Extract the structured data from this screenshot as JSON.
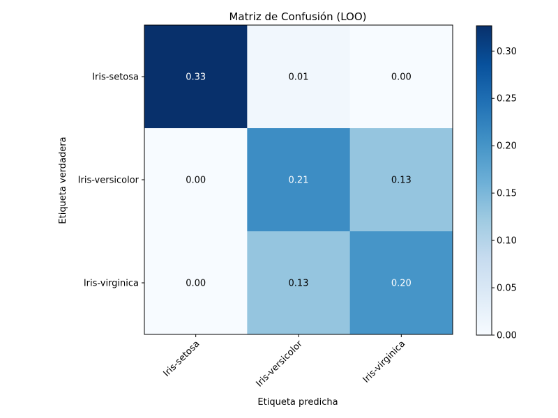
{
  "chart_data": {
    "type": "heatmap",
    "title": "Matriz de Confusión (LOO)",
    "xlabel": "Etiqueta predicha",
    "ylabel": "Etiqueta verdadera",
    "x_categories": [
      "Iris-setosa",
      "Iris-versicolor",
      "Iris-virginica"
    ],
    "y_categories": [
      "Iris-setosa",
      "Iris-versicolor",
      "Iris-virginica"
    ],
    "values": [
      [
        0.33,
        0.01,
        0.0
      ],
      [
        0.0,
        0.21,
        0.13
      ],
      [
        0.0,
        0.13,
        0.2
      ]
    ],
    "cell_labels": [
      [
        "0.33",
        "0.01",
        "0.00"
      ],
      [
        "0.00",
        "0.21",
        "0.13"
      ],
      [
        "0.00",
        "0.13",
        "0.20"
      ]
    ],
    "colormap": "Blues",
    "vmin": 0.0,
    "vmax": 0.3267,
    "colorbar_ticks": [
      0.0,
      0.05,
      0.1,
      0.15,
      0.2,
      0.25,
      0.3
    ],
    "colorbar_tick_labels": [
      "0.00",
      "0.05",
      "0.10",
      "0.15",
      "0.20",
      "0.25",
      "0.30"
    ]
  }
}
